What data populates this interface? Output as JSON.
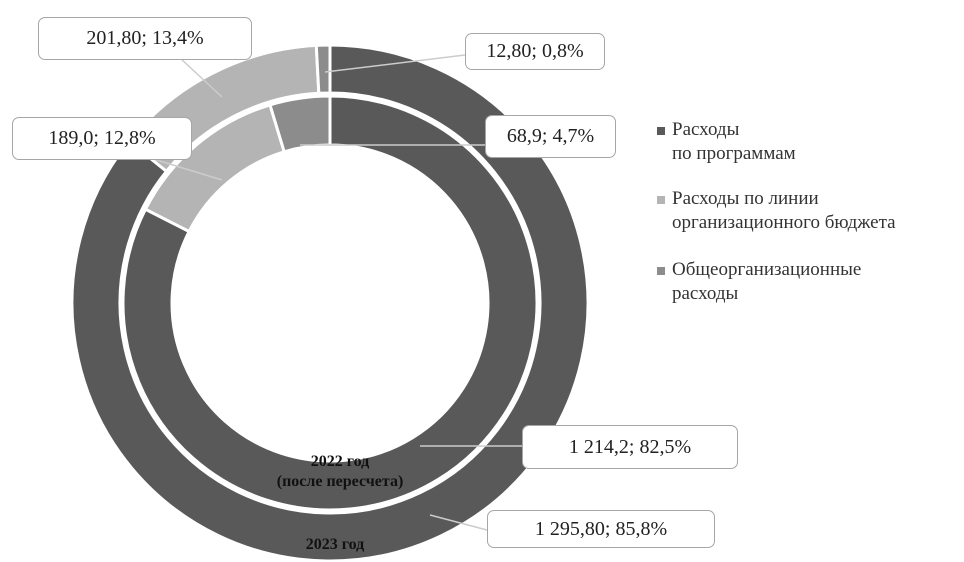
{
  "chart_data": {
    "type": "donut",
    "categories": [
      "Расходы\nпо программам",
      "Расходы по линии\nорганизационного бюджета",
      "Общеорганизационные\nрасходы"
    ],
    "colors": [
      "#595959",
      "#b4b4b4",
      "#8c8c8c"
    ],
    "series": [
      {
        "name": "2023 год",
        "values": [
          1295.8,
          201.8,
          12.8
        ],
        "value_labels": [
          "1 295,80; 85,8%",
          "201,80; 13,4%",
          "12,80; 0,8%"
        ]
      },
      {
        "name": "2022 год\n(после пересчета)",
        "values": [
          1214.2,
          189.0,
          68.9
        ],
        "value_labels": [
          "1 214,2; 82,5%",
          "189,0; 12,8%",
          "68,9; 4,7%"
        ]
      }
    ],
    "legend": "right"
  }
}
